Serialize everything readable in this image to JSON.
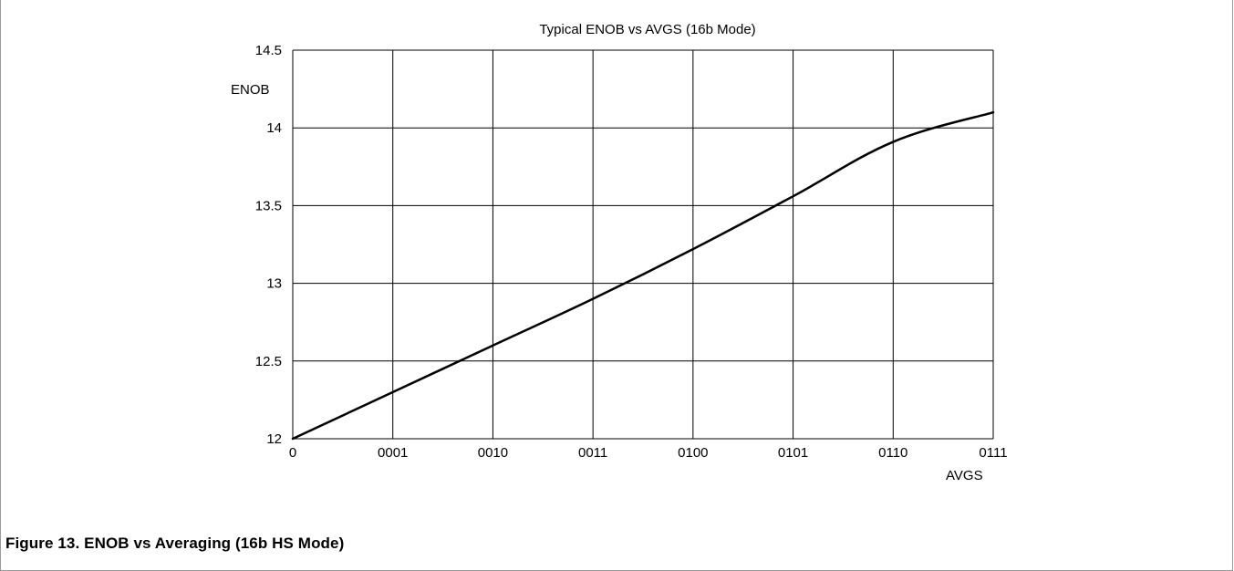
{
  "chart_data": {
    "type": "line",
    "title": "Typical ENOB vs AVGS (16b Mode)",
    "xlabel": "AVGS",
    "ylabel": "ENOB",
    "categories": [
      "0",
      "0001",
      "0010",
      "0011",
      "0100",
      "0101",
      "0110",
      "0111"
    ],
    "yticks": [
      "12",
      "12.5",
      "13",
      "13.5",
      "14",
      "14.5"
    ],
    "ylim": [
      12,
      14.5
    ],
    "grid": true,
    "legend": "none",
    "series": [
      {
        "values": [
          12.0,
          12.3,
          12.6,
          12.9,
          13.22,
          13.56,
          13.91,
          14.1
        ]
      }
    ],
    "line_color": "#000000"
  },
  "figure": {
    "caption": "Figure 13.  ENOB vs Averaging (16b HS Mode)"
  }
}
